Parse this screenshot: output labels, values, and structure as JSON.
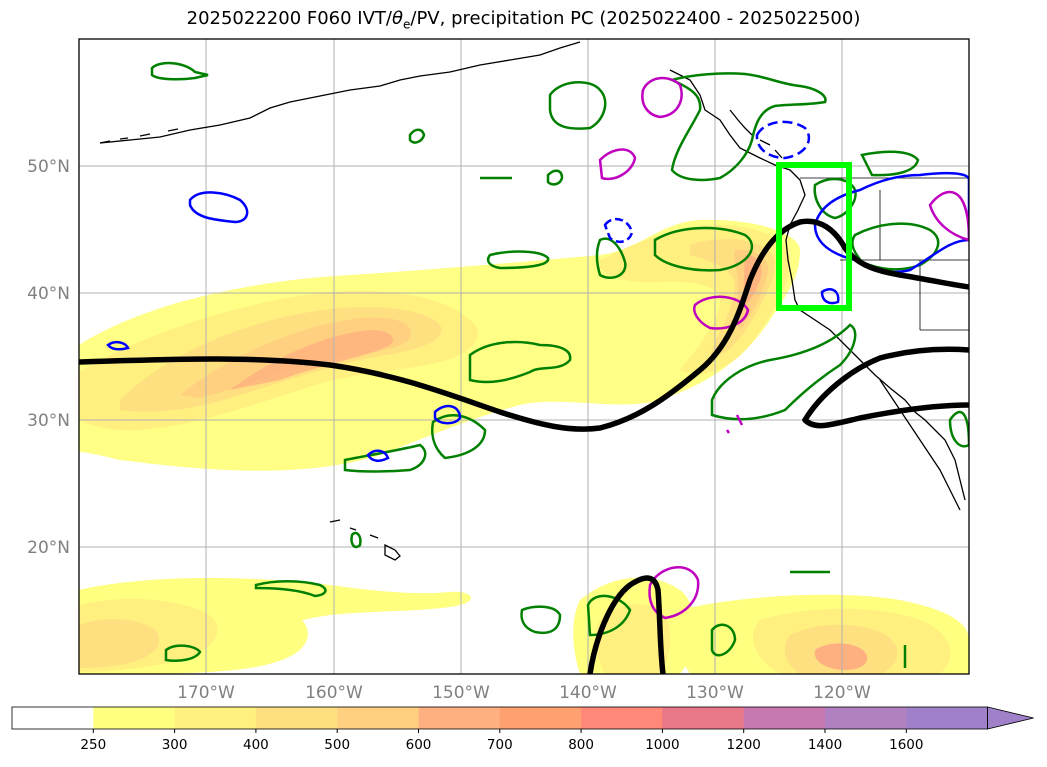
{
  "title": {
    "prefix": "2025022200 F060 IVT/",
    "theta": "θ",
    "sub": "e",
    "suffix": "/PV, precipitation PC (2025022400 - 2025022500)"
  },
  "lon_ticks": [
    "170°W",
    "160°W",
    "150°W",
    "140°W",
    "130°W",
    "120°W"
  ],
  "lat_ticks": [
    "50°N",
    "40°N",
    "30°N",
    "20°N"
  ],
  "colorbar": {
    "levels": [
      "250",
      "300",
      "400",
      "500",
      "600",
      "700",
      "800",
      "1000",
      "1200",
      "1400",
      "1600"
    ],
    "colors": [
      "#ffffff",
      "#ffff80",
      "#fff080",
      "#ffe080",
      "#ffd080",
      "#ffb080",
      "#ffa070",
      "#ff8878",
      "#e87888",
      "#c878b0",
      "#b080c0",
      "#a080c8"
    ],
    "extend": "max"
  },
  "map": {
    "projection": "Plate Carree",
    "lon_range": [
      180,
      110
    ],
    "lat_range": [
      10,
      60
    ],
    "highlight_box": {
      "lon": [
        125,
        119.5
      ],
      "lat": [
        39,
        50
      ],
      "color": "#00ff00"
    },
    "contour_colors": {
      "ivt_fill": "#ffff80",
      "pv_line": "#000000",
      "precip_green": "#008000",
      "precip_blue": "#0000ff",
      "precip_magenta": "#c000c0"
    }
  }
}
